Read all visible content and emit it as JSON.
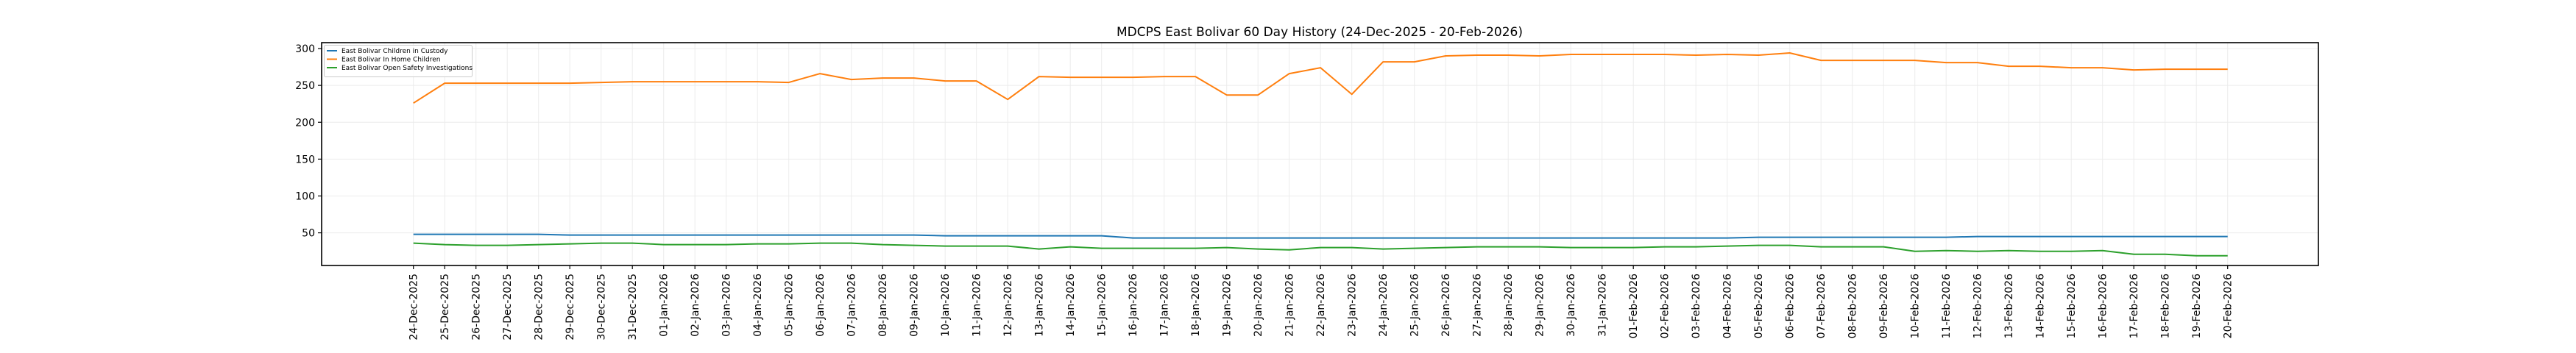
{
  "chart_data": {
    "type": "line",
    "title": "MDCPS East Bolivar 60 Day History (24-Dec-2025 - 20-Feb-2026)",
    "xlabel": "",
    "ylabel": "",
    "ylim": [
      5.7,
      308
    ],
    "yticks": [
      50,
      100,
      150,
      200,
      250,
      300
    ],
    "ytick_labels": [
      "50",
      "100",
      "150",
      "200",
      "250",
      "300"
    ],
    "grid": true,
    "legend_position": "top-left",
    "x": [
      "24-Dec-2025",
      "25-Dec-2025",
      "26-Dec-2025",
      "27-Dec-2025",
      "28-Dec-2025",
      "29-Dec-2025",
      "30-Dec-2025",
      "31-Dec-2025",
      "01-Jan-2026",
      "02-Jan-2026",
      "03-Jan-2026",
      "04-Jan-2026",
      "05-Jan-2026",
      "06-Jan-2026",
      "07-Jan-2026",
      "08-Jan-2026",
      "09-Jan-2026",
      "10-Jan-2026",
      "11-Jan-2026",
      "12-Jan-2026",
      "13-Jan-2026",
      "14-Jan-2026",
      "15-Jan-2026",
      "16-Jan-2026",
      "17-Jan-2026",
      "18-Jan-2026",
      "19-Jan-2026",
      "20-Jan-2026",
      "21-Jan-2026",
      "22-Jan-2026",
      "23-Jan-2026",
      "24-Jan-2026",
      "25-Jan-2026",
      "26-Jan-2026",
      "27-Jan-2026",
      "28-Jan-2026",
      "29-Jan-2026",
      "30-Jan-2026",
      "31-Jan-2026",
      "01-Feb-2026",
      "02-Feb-2026",
      "03-Feb-2026",
      "04-Feb-2026",
      "05-Feb-2026",
      "06-Feb-2026",
      "07-Feb-2026",
      "08-Feb-2026",
      "09-Feb-2026",
      "10-Feb-2026",
      "11-Feb-2026",
      "12-Feb-2026",
      "13-Feb-2026",
      "14-Feb-2026",
      "15-Feb-2026",
      "16-Feb-2026",
      "17-Feb-2026",
      "18-Feb-2026",
      "19-Feb-2026",
      "20-Feb-2026"
    ],
    "series": [
      {
        "name": "East Bolivar Children in Custody",
        "color": "#1f77b4",
        "values": [
          48,
          48,
          48,
          48,
          48,
          47,
          47,
          47,
          47,
          47,
          47,
          47,
          47,
          47,
          47,
          47,
          47,
          46,
          46,
          46,
          46,
          46,
          46,
          43,
          43,
          43,
          43,
          43,
          43,
          43,
          43,
          43,
          43,
          43,
          43,
          43,
          43,
          43,
          43,
          43,
          43,
          43,
          43,
          44,
          44,
          44,
          44,
          44,
          44,
          44,
          45,
          45,
          45,
          45,
          45,
          45,
          45,
          45,
          45
        ]
      },
      {
        "name": "East Bolivar In Home Children",
        "color": "#ff7f0e",
        "values": [
          226,
          253,
          253,
          253,
          253,
          253,
          254,
          255,
          255,
          255,
          255,
          255,
          254,
          266,
          258,
          260,
          260,
          256,
          256,
          231,
          262,
          261,
          261,
          261,
          262,
          262,
          237,
          237,
          266,
          274,
          238,
          282,
          282,
          290,
          291,
          291,
          290,
          292,
          292,
          292,
          292,
          291,
          292,
          291,
          294,
          284,
          284,
          284,
          284,
          281,
          281,
          276,
          276,
          274,
          274,
          271,
          272,
          272,
          272
        ]
      },
      {
        "name": "East Bolivar Open Safety Investigations",
        "color": "#2ca02c",
        "values": [
          36,
          34,
          33,
          33,
          34,
          35,
          36,
          36,
          34,
          34,
          34,
          35,
          35,
          36,
          36,
          34,
          33,
          32,
          32,
          32,
          28,
          31,
          29,
          29,
          29,
          29,
          30,
          28,
          27,
          30,
          30,
          28,
          29,
          30,
          31,
          31,
          31,
          30,
          30,
          30,
          31,
          31,
          32,
          33,
          33,
          31,
          31,
          31,
          25,
          26,
          25,
          26,
          25,
          25,
          26,
          21,
          21,
          19,
          19
        ]
      }
    ]
  }
}
